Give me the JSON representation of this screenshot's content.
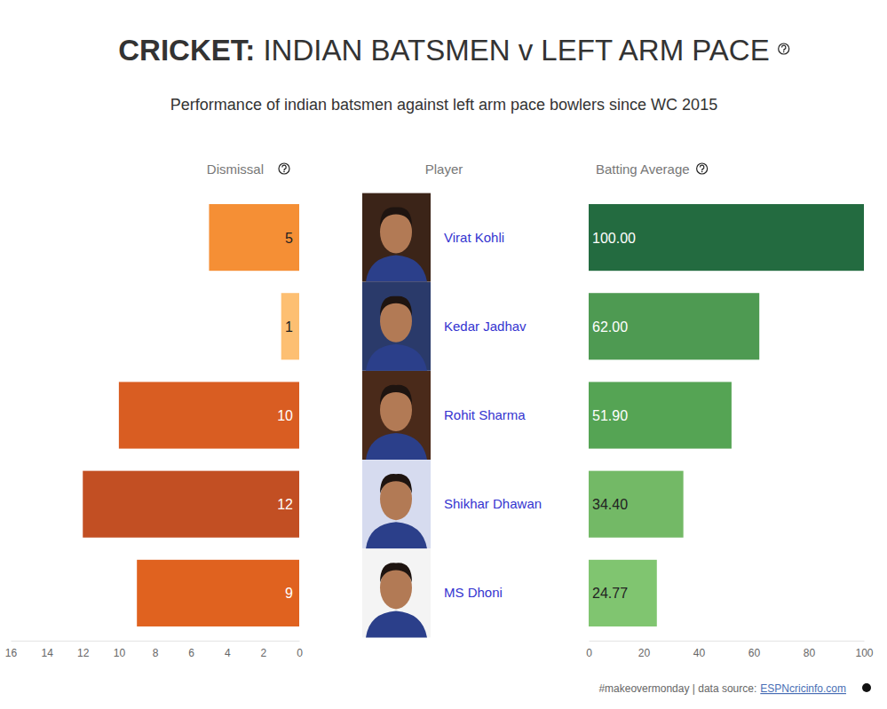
{
  "title": "CRICKET: INDIAN BATSMEN v LEFT ARM PACE",
  "subtitle": "Performance of indian batsmen against left arm pace bowlers since WC 2015",
  "player_header": "Player",
  "footer": "#makeovermonday | data source:",
  "source": "ESPNcricinfo.com",
  "chart_data": [
    {
      "type": "bar",
      "title": "Dismissal",
      "orientation": "horizontal",
      "categories": [
        "Virat Kohli",
        "Kedar Jadhav",
        "Rohit Sharma",
        "Shikhar Dhawan",
        "MS Dhoni"
      ],
      "values": [
        5,
        1,
        10,
        12,
        9
      ],
      "colors": [
        "#f58f35",
        "#fdbf72",
        "#d95d22",
        "#c24f23",
        "#e0621f"
      ],
      "xlim": [
        16,
        0
      ],
      "xticks": [
        16,
        14,
        12,
        10,
        8,
        6,
        4,
        2,
        0
      ],
      "data_labels": true
    },
    {
      "type": "bar",
      "title": "Batting Average",
      "orientation": "horizontal",
      "categories": [
        "Virat Kohli",
        "Kedar Jadhav",
        "Rohit Sharma",
        "Shikhar Dhawan",
        "MS Dhoni"
      ],
      "values": [
        100,
        62,
        51.9,
        34.4,
        24.77
      ],
      "value_labels": [
        "100.00",
        "62.00",
        "51.90",
        "34.40",
        "24.77"
      ],
      "colors": [
        "#236b40",
        "#4e9a52",
        "#55a454",
        "#73b966",
        "#80c570"
      ],
      "xlim": [
        0,
        100
      ],
      "xticks": [
        0,
        20,
        40,
        60,
        80,
        100
      ],
      "data_labels": true
    }
  ]
}
